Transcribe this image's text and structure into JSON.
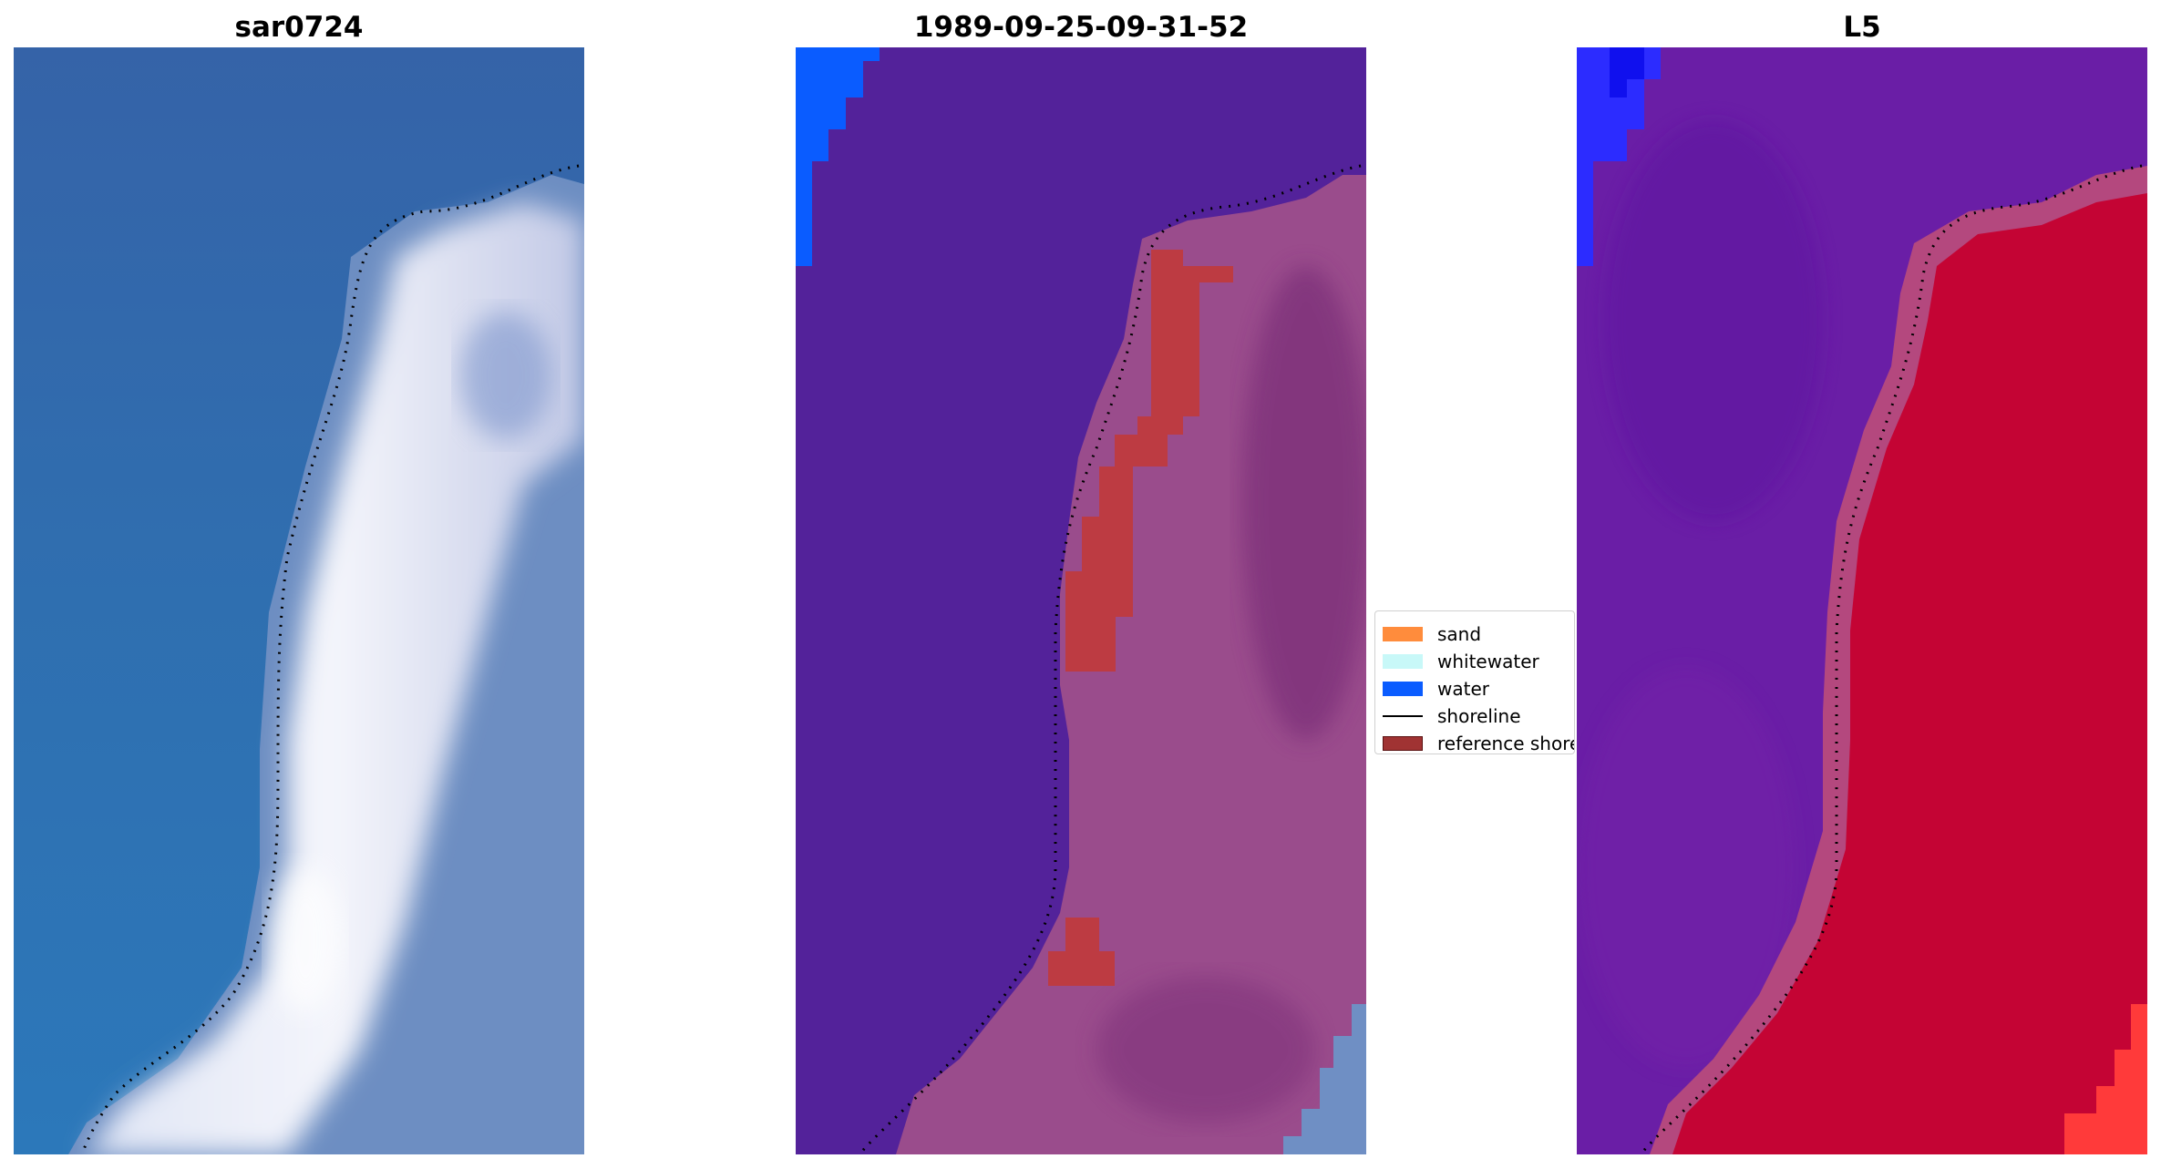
{
  "panels": [
    {
      "title": "sar0724",
      "type": "rgb"
    },
    {
      "title": "1989-09-25-09-31-52",
      "type": "classified"
    },
    {
      "title": "L5",
      "type": "false-color"
    }
  ],
  "legend": {
    "items": [
      {
        "label": "sand",
        "kind": "patch",
        "color": "#ff8c3c"
      },
      {
        "label": "whitewater",
        "kind": "patch",
        "color": "#c8f8f8"
      },
      {
        "label": "water",
        "kind": "patch",
        "color": "#0a5cff"
      },
      {
        "label": "shoreline",
        "kind": "line",
        "color": "#000000"
      },
      {
        "label": "reference shoreline",
        "kind": "patch",
        "color": "#a03333"
      }
    ]
  },
  "colors": {
    "rgb_water": "#2f66a8",
    "rgb_sand": "#e8ecf6",
    "rgb_land": "#6f8fc0",
    "class_water": "#53229a",
    "class_land": "#9a4c8c",
    "class_blue": "#0a5cff",
    "false_water": "#6a1ea6",
    "false_land": "#c40434",
    "false_blue": "#2c2cff"
  }
}
